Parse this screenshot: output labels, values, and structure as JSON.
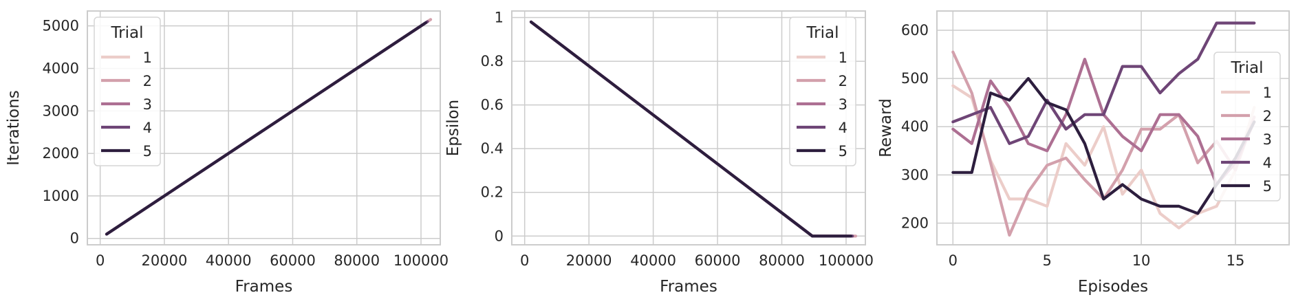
{
  "palette": [
    "#eccdc9",
    "#d3a0ac",
    "#ad6f92",
    "#6e4576",
    "#2d1e3e"
  ],
  "chart_data": [
    {
      "type": "line",
      "xlabel": "Frames",
      "ylabel": "Iterations",
      "xlim": [
        -4000,
        106000
      ],
      "ylim": [
        -150,
        5350
      ],
      "xticks": [
        0,
        20000,
        40000,
        60000,
        80000,
        100000
      ],
      "yticks": [
        0,
        1000,
        2000,
        3000,
        4000,
        5000
      ],
      "grid": true,
      "legend": {
        "title": "Trial",
        "placement": "upper-left",
        "entries": [
          "1",
          "2",
          "3",
          "4",
          "5"
        ]
      },
      "series": [
        {
          "name": "1",
          "x": [
            2000,
            103000
          ],
          "y": [
            100,
            5150
          ]
        },
        {
          "name": "2",
          "x": [
            2000,
            103000
          ],
          "y": [
            100,
            5150
          ]
        },
        {
          "name": "3",
          "x": [
            2000,
            102000
          ],
          "y": [
            100,
            5100
          ]
        },
        {
          "name": "4",
          "x": [
            2000,
            102000
          ],
          "y": [
            100,
            5100
          ]
        },
        {
          "name": "5",
          "x": [
            2000,
            101500
          ],
          "y": [
            100,
            5075
          ]
        }
      ]
    },
    {
      "type": "line",
      "xlabel": "Frames",
      "ylabel": "Epsilon",
      "xlim": [
        -4000,
        106000
      ],
      "ylim": [
        -0.04,
        1.03
      ],
      "xticks": [
        0,
        20000,
        40000,
        60000,
        80000,
        100000
      ],
      "yticks": [
        0.0,
        0.2,
        0.4,
        0.6,
        0.8,
        1.0
      ],
      "grid": true,
      "legend": {
        "title": "Trial",
        "placement": "upper-right",
        "entries": [
          "1",
          "2",
          "3",
          "4",
          "5"
        ]
      },
      "series": [
        {
          "name": "1",
          "x": [
            2000,
            89500,
            103000
          ],
          "y": [
            0.98,
            0.0,
            0.0
          ]
        },
        {
          "name": "2",
          "x": [
            2000,
            89500,
            103000
          ],
          "y": [
            0.98,
            0.0,
            0.0
          ]
        },
        {
          "name": "3",
          "x": [
            2000,
            89500,
            102000
          ],
          "y": [
            0.98,
            0.0,
            0.0
          ]
        },
        {
          "name": "4",
          "x": [
            2000,
            89500,
            102000
          ],
          "y": [
            0.98,
            0.0,
            0.0
          ]
        },
        {
          "name": "5",
          "x": [
            2000,
            89500,
            101500
          ],
          "y": [
            0.98,
            0.0,
            0.0
          ]
        }
      ]
    },
    {
      "type": "line",
      "xlabel": "Episodes",
      "ylabel": "Reward",
      "xlim": [
        -0.85,
        17.85
      ],
      "ylim": [
        155,
        640
      ],
      "xticks": [
        0,
        5,
        10,
        15
      ],
      "yticks": [
        200,
        300,
        400,
        500,
        600
      ],
      "grid": true,
      "legend": {
        "title": "Trial",
        "placement": "center-right",
        "entries": [
          "1",
          "2",
          "3",
          "4",
          "5"
        ]
      },
      "series": [
        {
          "name": "1",
          "x": [
            0,
            1,
            2,
            3,
            4,
            5,
            6,
            7,
            8,
            9,
            10,
            11,
            12,
            13,
            14,
            15,
            16
          ],
          "y": [
            485,
            460,
            330,
            250,
            250,
            235,
            365,
            320,
            400,
            260,
            310,
            220,
            190,
            220,
            235,
            310,
            440
          ]
        },
        {
          "name": "2",
          "x": [
            0,
            1,
            2,
            3,
            4,
            5,
            6,
            7,
            8,
            9,
            10,
            11,
            12,
            13,
            14,
            15,
            16
          ],
          "y": [
            555,
            470,
            325,
            175,
            265,
            320,
            335,
            290,
            250,
            310,
            395,
            395,
            425,
            325,
            370,
            310,
            420
          ]
        },
        {
          "name": "3",
          "x": [
            0,
            1,
            2,
            3,
            4,
            5,
            6,
            7,
            8,
            9,
            10,
            11,
            12,
            13,
            14,
            15,
            16
          ],
          "y": [
            395,
            365,
            495,
            440,
            365,
            350,
            425,
            540,
            425,
            380,
            350,
            425,
            425,
            380,
            280,
            325,
            410
          ]
        },
        {
          "name": "4",
          "x": [
            0,
            1,
            2,
            3,
            4,
            5,
            6,
            7,
            8,
            9,
            10,
            11,
            12,
            13,
            14,
            15,
            16
          ],
          "y": [
            410,
            425,
            440,
            365,
            380,
            455,
            395,
            425,
            425,
            525,
            525,
            470,
            510,
            540,
            615,
            615,
            615
          ]
        },
        {
          "name": "5",
          "x": [
            0,
            1,
            2,
            3,
            4,
            5,
            6,
            7,
            8,
            9,
            10,
            11,
            12,
            13,
            14,
            15,
            16
          ],
          "y": [
            305,
            305,
            470,
            455,
            500,
            450,
            435,
            365,
            250,
            280,
            250,
            235,
            235,
            220,
            280,
            335,
            410
          ]
        }
      ]
    }
  ]
}
